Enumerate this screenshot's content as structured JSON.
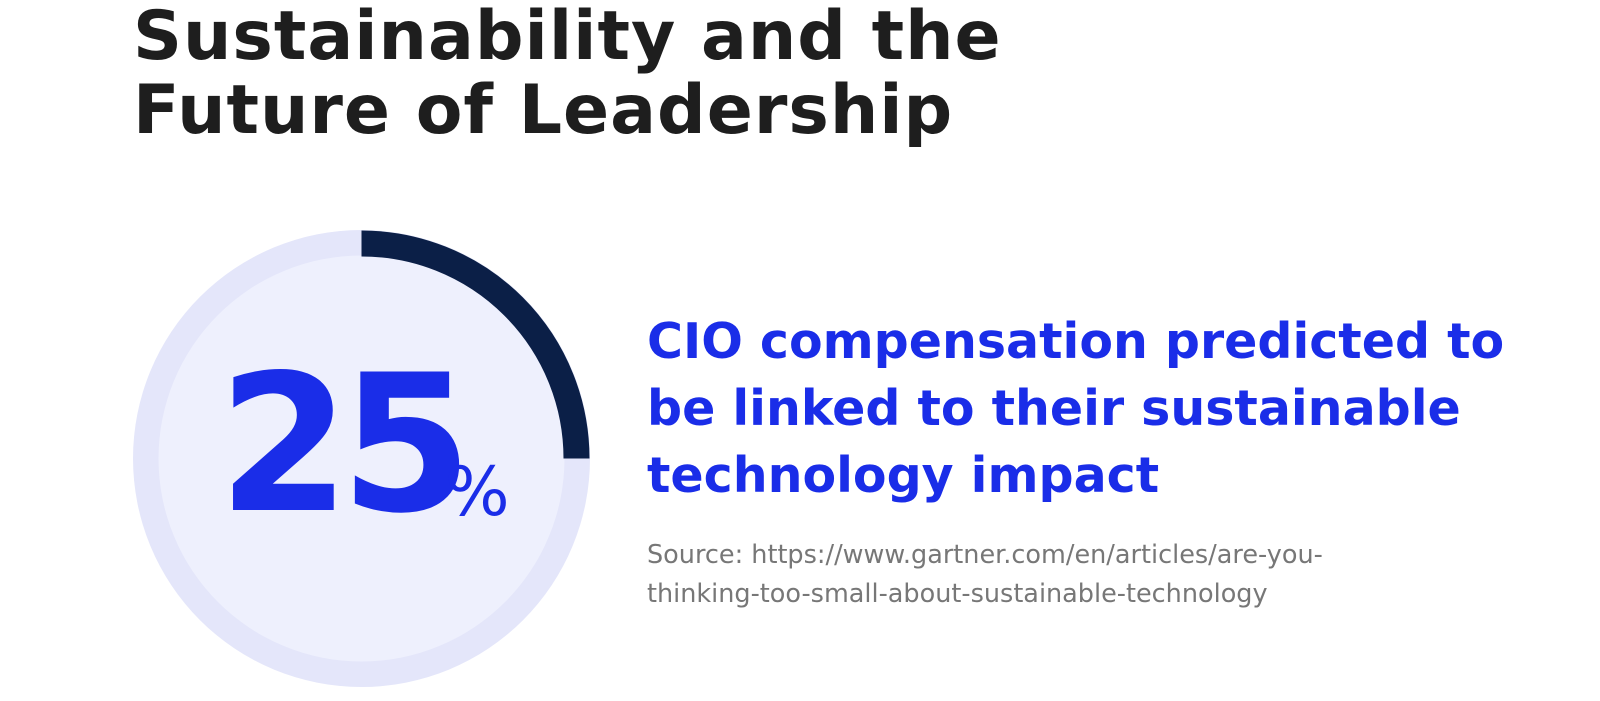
{
  "title_lines": [
    "Sustainability and the",
    "Future of Leadership"
  ],
  "stat": {
    "number": "25",
    "unit": "%",
    "description_lines": [
      "CIO compensation predicted to",
      "be linked to their sustainable",
      "technology impact"
    ],
    "source_lines": [
      "Source: https://www.gartner.com/en/articles/are-you-",
      "thinking-too-small-about-sustainable-technology"
    ]
  },
  "colors": {
    "accent": "#1a2de8",
    "arc": "#0b1f47",
    "ring_track": "#e4e6fa",
    "inner_fill": "#eef0fd",
    "title": "#1e1e1e",
    "source": "#777777"
  },
  "chart_data": {
    "type": "pie",
    "title": "Sustainability and the Future of Leadership",
    "categories": [
      "CIO compensation predicted to be linked to their sustainable technology impact",
      ""
    ],
    "values": [
      25,
      75
    ],
    "unit": "%",
    "grid": false,
    "legend": "none"
  }
}
